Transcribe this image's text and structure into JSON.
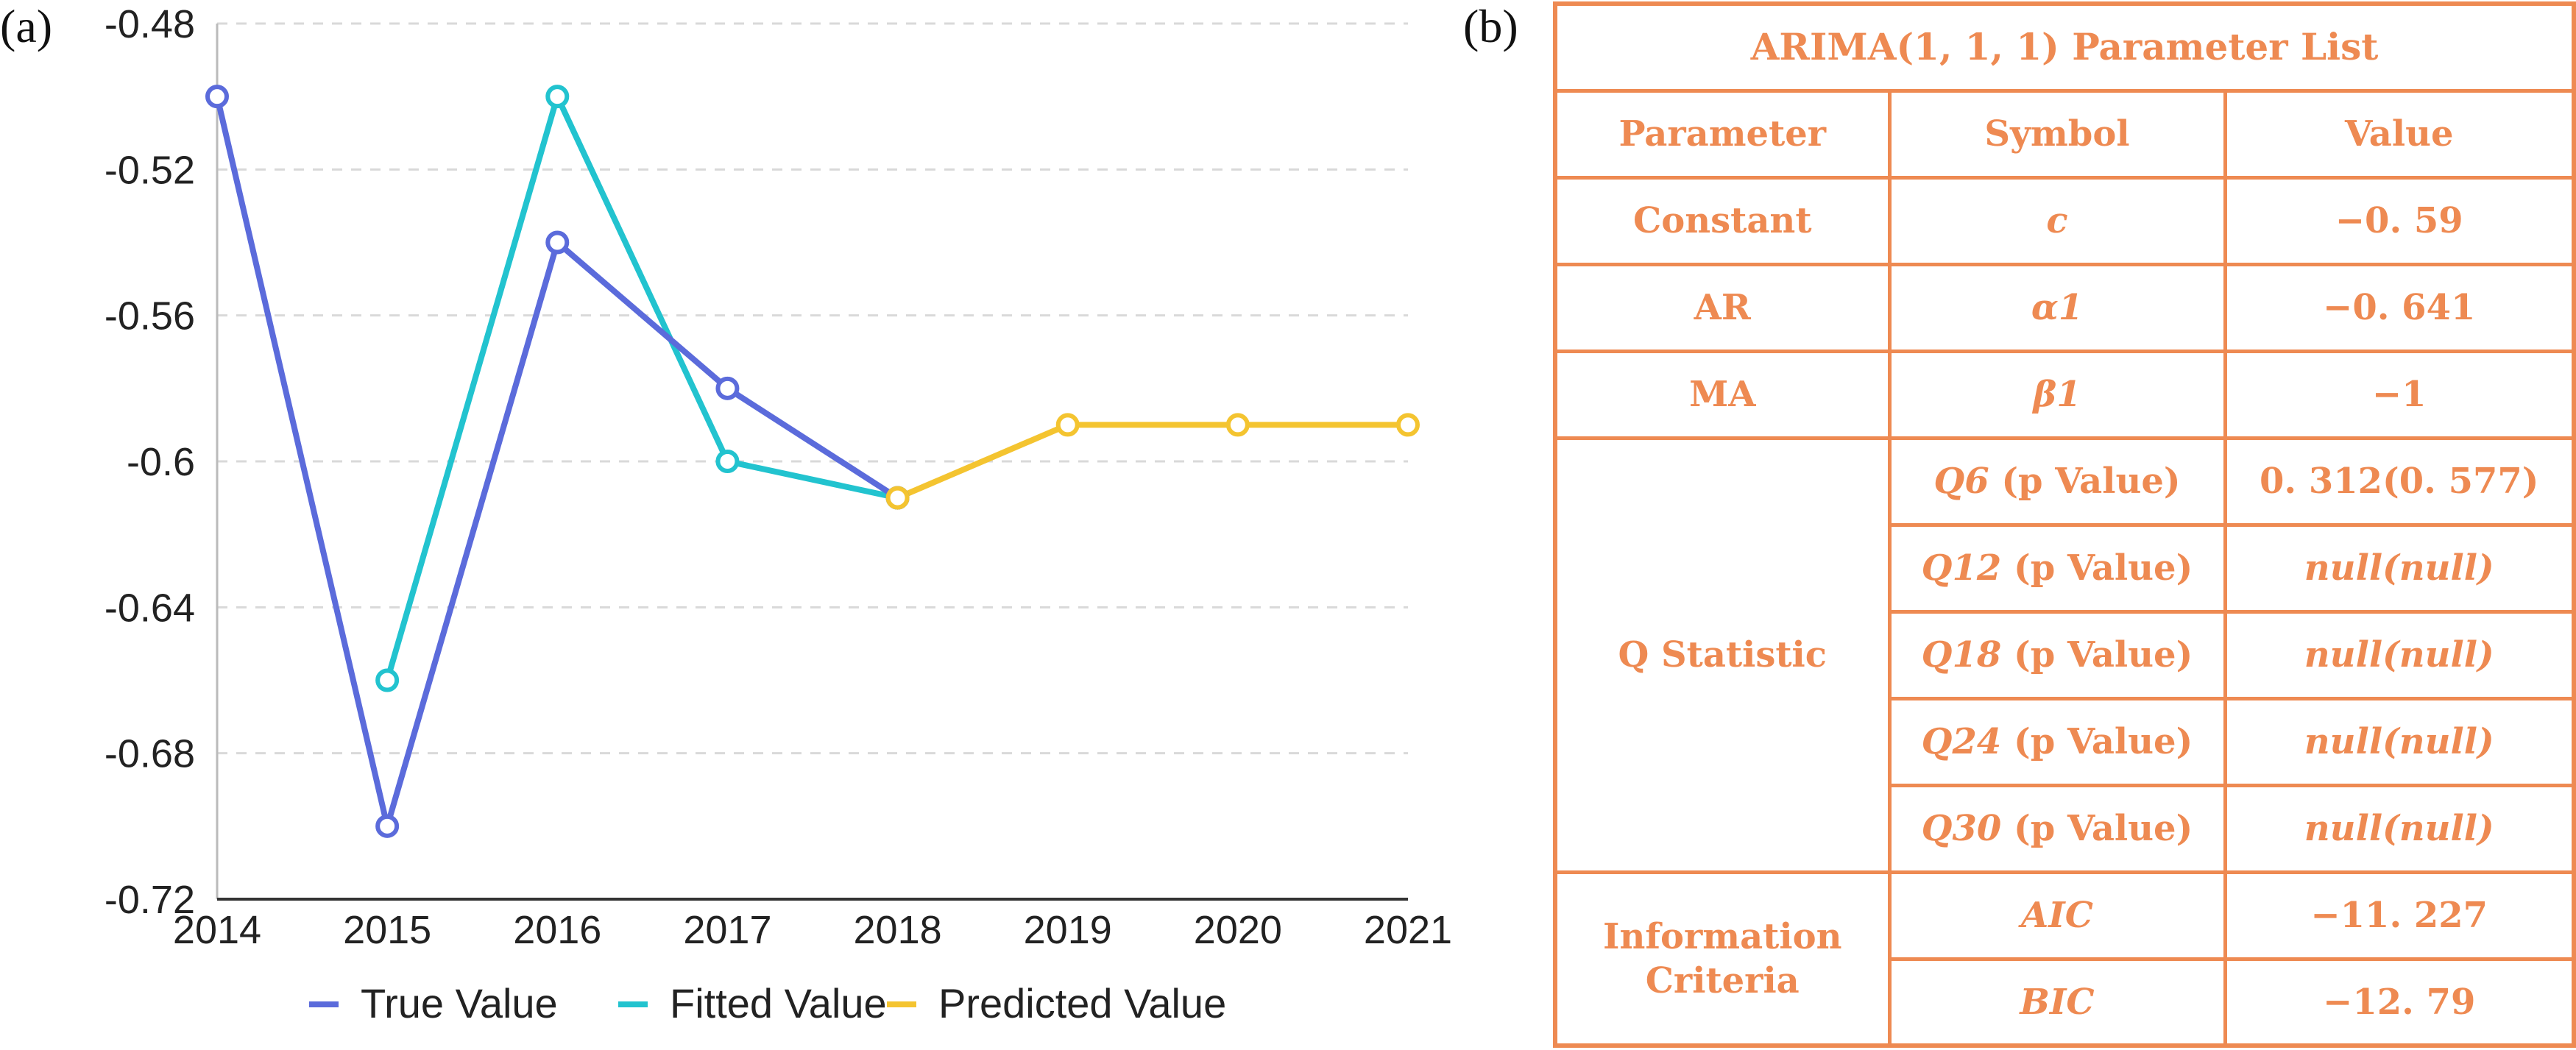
{
  "panel_a_label": "(a)",
  "panel_b_label": "(b)",
  "chart_data": {
    "type": "line",
    "x": [
      "2014",
      "2015",
      "2016",
      "2017",
      "2018",
      "2019",
      "2020",
      "2021"
    ],
    "ylim": [
      -0.72,
      -0.48
    ],
    "yticks": [
      "-0.48",
      "-0.52",
      "-0.56",
      "-0.6",
      "-0.64",
      "-0.68",
      "-0.72"
    ],
    "ytick_values": [
      -0.48,
      -0.52,
      -0.56,
      -0.6,
      -0.64,
      -0.68,
      -0.72
    ],
    "grid": "horizontal-dashed",
    "legend_position": "bottom-center",
    "series": [
      {
        "name": "True Value",
        "color": "#5b6bdb",
        "points": [
          [
            0,
            -0.5
          ],
          [
            1,
            -0.7
          ],
          [
            2,
            -0.54
          ],
          [
            3,
            -0.58
          ],
          [
            4,
            -0.61
          ]
        ]
      },
      {
        "name": "Fitted Value",
        "color": "#22c3cf",
        "points": [
          [
            1,
            -0.66
          ],
          [
            2,
            -0.5
          ],
          [
            3,
            -0.6
          ],
          [
            4,
            -0.61
          ]
        ]
      },
      {
        "name": "Predicted Value",
        "color": "#f4c430",
        "points": [
          [
            4,
            -0.61
          ],
          [
            5,
            -0.59
          ],
          [
            6,
            -0.59
          ],
          [
            7,
            -0.59
          ]
        ]
      }
    ]
  },
  "table": {
    "title": "ARIMA(1, 1, 1) Parameter List",
    "headers": {
      "parameter": "Parameter",
      "symbol": "Symbol",
      "value": "Value"
    },
    "rows": {
      "constant": {
        "parameter": "Constant",
        "symbol": "c",
        "value": "−0. 59"
      },
      "ar": {
        "parameter": "AR",
        "symbol": "α1",
        "value": "−0. 641"
      },
      "ma": {
        "parameter": "MA",
        "symbol": "β1",
        "value": "−1"
      }
    },
    "q_statistic": {
      "label": "Q Statistic",
      "rows": [
        {
          "q": "Q6",
          "pv": "(p Value)",
          "value": "0. 312(0. 577)"
        },
        {
          "q": "Q12",
          "pv": "(p Value)",
          "value": "null(null)"
        },
        {
          "q": "Q18",
          "pv": "(p Value)",
          "value": "null(null)"
        },
        {
          "q": "Q24",
          "pv": "(p Value)",
          "value": "null(null)"
        },
        {
          "q": "Q30",
          "pv": "(p Value)",
          "value": "null(null)"
        }
      ]
    },
    "info_criteria": {
      "label_line1": "Information",
      "label_line2": "Criteria",
      "rows": [
        {
          "symbol": "AIC",
          "value": "−11. 227"
        },
        {
          "symbol": "BIC",
          "value": "−12. 79"
        }
      ]
    }
  }
}
